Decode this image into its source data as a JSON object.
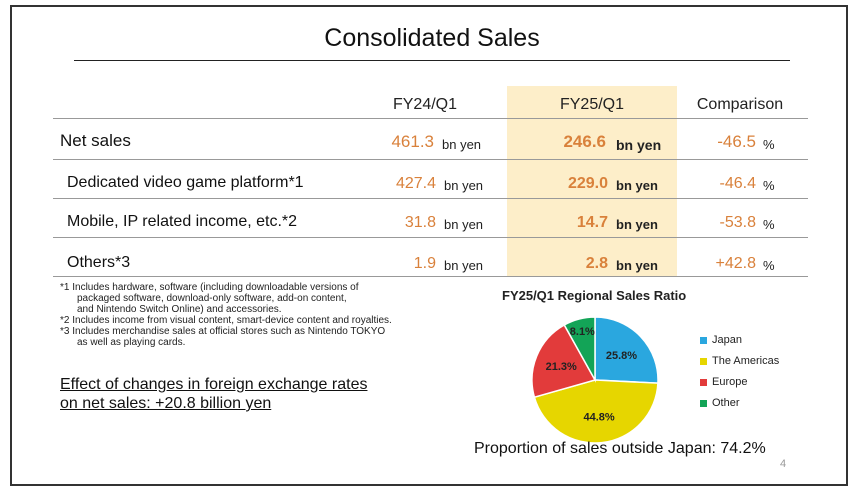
{
  "title": "Consolidated Sales",
  "columns": {
    "prev": "FY24/Q1",
    "curr": "FY25/Q1",
    "comp": "Comparison"
  },
  "rows": [
    {
      "label": "Net sales",
      "prev": "461.3",
      "prev_unit": "bn yen",
      "curr": "246.6",
      "curr_unit": "bn yen",
      "comp": "-46.5",
      "comp_unit": "%"
    },
    {
      "label": "Dedicated video game platform*1",
      "prev": "427.4",
      "prev_unit": "bn yen",
      "curr": "229.0",
      "curr_unit": "bn yen",
      "comp": "-46.4",
      "comp_unit": "%"
    },
    {
      "label": "Mobile, IP related income, etc.*2",
      "prev": "31.8",
      "prev_unit": "bn yen",
      "curr": "14.7",
      "curr_unit": "bn yen",
      "comp": "-53.8",
      "comp_unit": "%"
    },
    {
      "label": "Others*3",
      "prev": "1.9",
      "prev_unit": "bn yen",
      "curr": "2.8",
      "curr_unit": "bn yen",
      "comp": "+42.8",
      "comp_unit": "%"
    }
  ],
  "notes": [
    "*1 Includes hardware, software (including downloadable versions of",
    "packaged software, download-only software, add-on content,",
    "and Nintendo Switch Online) and accessories.",
    "*2 Includes income from visual content, smart-device content and royalties.",
    "*3 Includes merchandise sales at official stores such as Nintendo TOKYO",
    "as well as playing cards."
  ],
  "fx": {
    "line1": "Effect of changes in foreign exchange rates",
    "line2": "on net sales: +20.8 billion yen"
  },
  "pie": {
    "title": "FY25/Q1 Regional Sales Ratio",
    "segments": [
      {
        "name": "Japan",
        "value": 25.8,
        "label": "25.8%",
        "color": "#2aa7df"
      },
      {
        "name": "The Americas",
        "value": 44.8,
        "label": "44.8%",
        "color": "#e6d600"
      },
      {
        "name": "Europe",
        "value": 21.3,
        "label": "21.3%",
        "color": "#e23b3b"
      },
      {
        "name": "Other",
        "value": 8.1,
        "label": "8.1%",
        "color": "#13a457"
      }
    ]
  },
  "proportion": "Proportion of sales outside Japan: 74.2%",
  "page_number": "4"
}
